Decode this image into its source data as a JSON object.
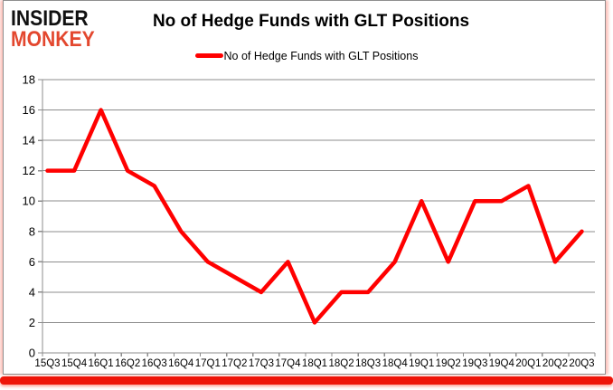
{
  "logo": {
    "line1": "INSIDER",
    "line2": "MONKEY",
    "line1_color": "#111111",
    "line2_color": "#e3472e"
  },
  "header": {
    "title": "No of Hedge Funds with GLT Positions"
  },
  "legend": {
    "label": "No of Hedge Funds with GLT Positions",
    "swatch_color": "#ff0000"
  },
  "frame": {
    "border_color": "#8f8f8f",
    "bottom_bar_color": "#ee1509"
  },
  "chart_data": {
    "type": "line",
    "title": "No of Hedge Funds with GLT Positions",
    "xlabel": "",
    "ylabel": "",
    "categories": [
      "15Q3",
      "15Q4",
      "16Q1",
      "16Q2",
      "16Q3",
      "16Q4",
      "17Q1",
      "17Q2",
      "17Q3",
      "17Q4",
      "18Q1",
      "18Q2",
      "18Q3",
      "18Q4",
      "19Q1",
      "19Q2",
      "19Q3",
      "19Q4",
      "20Q1",
      "20Q2",
      "20Q3"
    ],
    "series": [
      {
        "name": "No of Hedge Funds with GLT Positions",
        "color": "#ff0000",
        "values": [
          12,
          12,
          16,
          12,
          11,
          8,
          6,
          5,
          4,
          6,
          2,
          4,
          4,
          6,
          10,
          6,
          10,
          10,
          11,
          6,
          8
        ]
      }
    ],
    "ylim": [
      0,
      18
    ],
    "ytick_step": 2,
    "grid": "horizontal",
    "gridline_color": "#8c8c8c",
    "axis_color": "#8c8c8c",
    "legend_position": "top-center"
  }
}
